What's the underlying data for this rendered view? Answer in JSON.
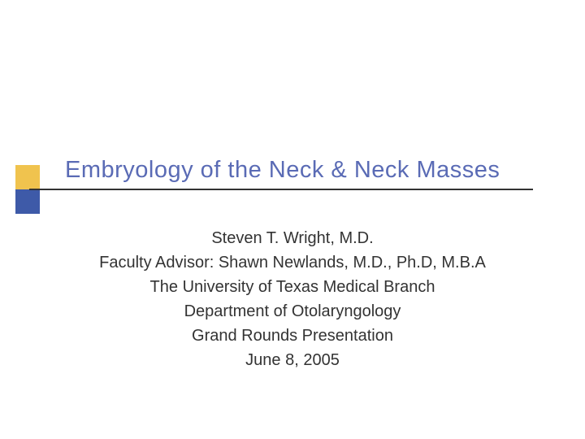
{
  "slide": {
    "title": "Embryology of the Neck & Neck Masses",
    "title_color": "#5a6bb5",
    "title_fontsize": 29,
    "body_lines": [
      "Steven T. Wright, M.D.",
      "Faculty Advisor: Shawn Newlands, M.D., Ph.D, M.B.A",
      "The University of Texas Medical Branch",
      "Department of Otolaryngology",
      "Grand Rounds Presentation",
      "June 8, 2005"
    ],
    "body_color": "#333333",
    "body_fontsize": 20,
    "accent_colors": {
      "top_block": "#f0c34e",
      "bottom_block": "#3e5aa8",
      "rule": "#333333"
    },
    "background_color": "#ffffff"
  }
}
